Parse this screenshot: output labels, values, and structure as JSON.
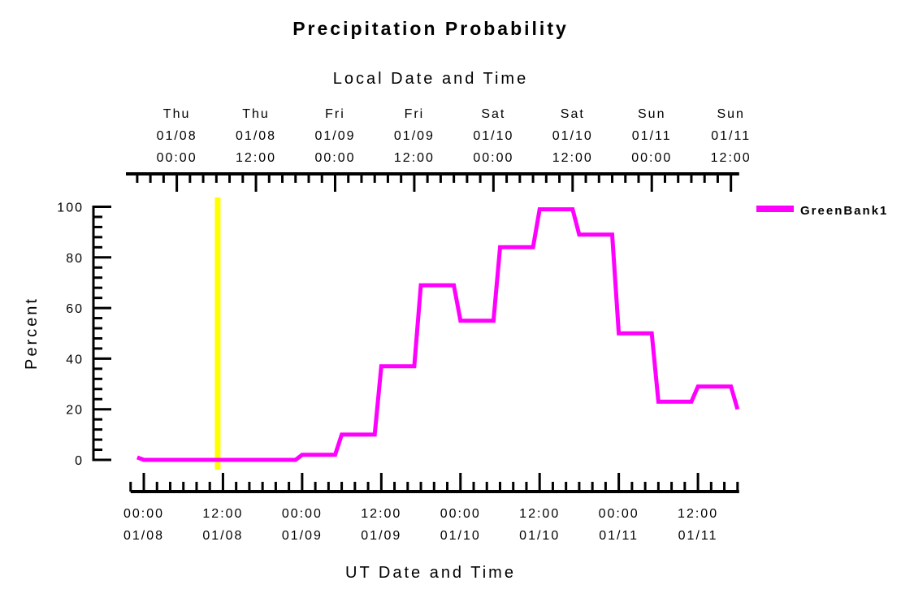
{
  "chart_data": {
    "type": "line",
    "title": "Precipitation Probability",
    "top_axis_title": "Local Date and Time",
    "xlabel": "UT Date and Time",
    "ylabel": "Percent",
    "x_unit": "hours since 00:00 UT 01/08",
    "xlim": [
      -2,
      90
    ],
    "ylim": [
      0,
      100
    ],
    "yticks": [
      "0",
      "20",
      "40",
      "60",
      "80",
      "100"
    ],
    "ytick_values": [
      0,
      20,
      40,
      60,
      80,
      100
    ],
    "bottom_ticks": [
      {
        "x": 0,
        "time": "00:00",
        "date": "01/08"
      },
      {
        "x": 12,
        "time": "12:00",
        "date": "01/08"
      },
      {
        "x": 24,
        "time": "00:00",
        "date": "01/09"
      },
      {
        "x": 36,
        "time": "12:00",
        "date": "01/09"
      },
      {
        "x": 48,
        "time": "00:00",
        "date": "01/10"
      },
      {
        "x": 60,
        "time": "12:00",
        "date": "01/10"
      },
      {
        "x": 72,
        "time": "00:00",
        "date": "01/11"
      },
      {
        "x": 84,
        "time": "12:00",
        "date": "01/11"
      }
    ],
    "local_utc_offset_hours": -5,
    "top_ticks": [
      {
        "x": 5,
        "day": "Thu",
        "date": "01/08",
        "time": "00:00"
      },
      {
        "x": 17,
        "day": "Thu",
        "date": "01/08",
        "time": "12:00"
      },
      {
        "x": 29,
        "day": "Fri",
        "date": "01/09",
        "time": "00:00"
      },
      {
        "x": 41,
        "day": "Fri",
        "date": "01/09",
        "time": "12:00"
      },
      {
        "x": 53,
        "day": "Sat",
        "date": "01/10",
        "time": "00:00"
      },
      {
        "x": 65,
        "day": "Sat",
        "date": "01/10",
        "time": "12:00"
      },
      {
        "x": 77,
        "day": "Sun",
        "date": "01/11",
        "time": "00:00"
      },
      {
        "x": 89,
        "day": "Sun",
        "date": "01/11",
        "time": "12:00"
      }
    ],
    "current_time_marker": {
      "x": 11.2,
      "color": "#ffff00"
    },
    "series": [
      {
        "name": "GreenBank1",
        "color": "#ff00ff",
        "x": [
          -1,
          0,
          23,
          24,
          29,
          30,
          35,
          36,
          41,
          42,
          47,
          48,
          53,
          54,
          59,
          60,
          65,
          66,
          71,
          72,
          77,
          78,
          83,
          84,
          89,
          90
        ],
        "y": [
          1,
          0,
          0,
          2,
          2,
          10,
          10,
          37,
          37,
          69,
          69,
          55,
          55,
          84,
          84,
          99,
          99,
          89,
          89,
          50,
          50,
          23,
          23,
          29,
          29,
          20
        ]
      }
    ],
    "legend_position": "top-right",
    "grid": false
  }
}
